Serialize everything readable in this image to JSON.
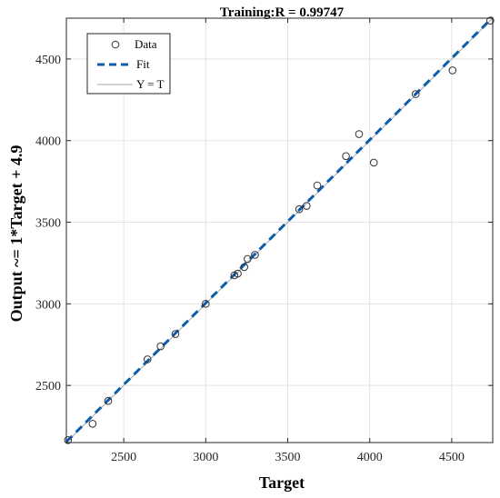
{
  "chart_data": {
    "type": "scatter",
    "title": "Training:R = 0.99747",
    "xlabel": "Target",
    "ylabel": "Output ~= 1*Target + 4.9",
    "xlim": [
      2150,
      4750
    ],
    "ylim": [
      2150,
      4750
    ],
    "xticks": [
      2500,
      3000,
      3500,
      4000,
      4500
    ],
    "yticks": [
      2500,
      3000,
      3500,
      4000,
      4500
    ],
    "grid": true,
    "legend_position": "top-left",
    "series": [
      {
        "name": "Data",
        "kind": "markers",
        "color": "#333333",
        "x": [
          2160,
          2310,
          2405,
          2645,
          2725,
          2815,
          3000,
          3175,
          3195,
          3235,
          3255,
          3300,
          3570,
          3615,
          3680,
          3855,
          3935,
          4025,
          4280,
          4505,
          4735
        ],
        "y": [
          2165,
          2265,
          2405,
          2660,
          2740,
          2815,
          3000,
          3175,
          3185,
          3225,
          3275,
          3300,
          3580,
          3600,
          3725,
          3905,
          4040,
          3865,
          4285,
          4430,
          4735
        ]
      },
      {
        "name": "Fit",
        "kind": "line",
        "style": "dashed",
        "color": "#0b5cad",
        "slope": 1,
        "intercept": 4.9
      },
      {
        "name": "Y = T",
        "kind": "line",
        "style": "solid",
        "color": "#a8a8a8",
        "slope": 1,
        "intercept": 0
      }
    ]
  }
}
